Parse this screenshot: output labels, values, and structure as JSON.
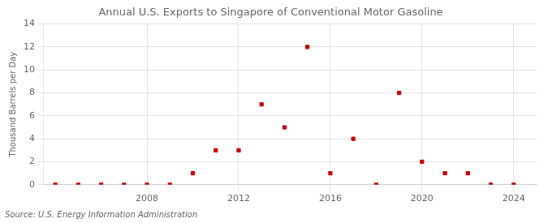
{
  "chart_data": {
    "type": "scatter",
    "title": "Annual U.S. Exports to Singapore of Conventional Motor Gasoline",
    "ylabel": "Thousand Barrels per Day",
    "source": "Source: U.S. Energy Information Administration",
    "x": [
      2004,
      2005,
      2006,
      2007,
      2008,
      2009,
      2010,
      2011,
      2012,
      2013,
      2014,
      2015,
      2016,
      2017,
      2018,
      2019,
      2020,
      2021,
      2022,
      2023,
      2024
    ],
    "values": [
      0,
      0,
      0,
      0,
      0,
      0,
      1,
      3,
      3,
      7,
      5,
      12,
      1,
      4,
      0,
      8,
      2,
      1,
      1,
      0,
      0
    ],
    "color": "#cc0000",
    "marker": "square",
    "xlim": [
      2003.5,
      2025
    ],
    "xticks": [
      2008,
      2012,
      2016,
      2020,
      2024
    ],
    "ylim": [
      0,
      14
    ],
    "yticks": [
      0,
      2,
      4,
      6,
      8,
      10,
      12,
      14
    ],
    "grid": true
  }
}
